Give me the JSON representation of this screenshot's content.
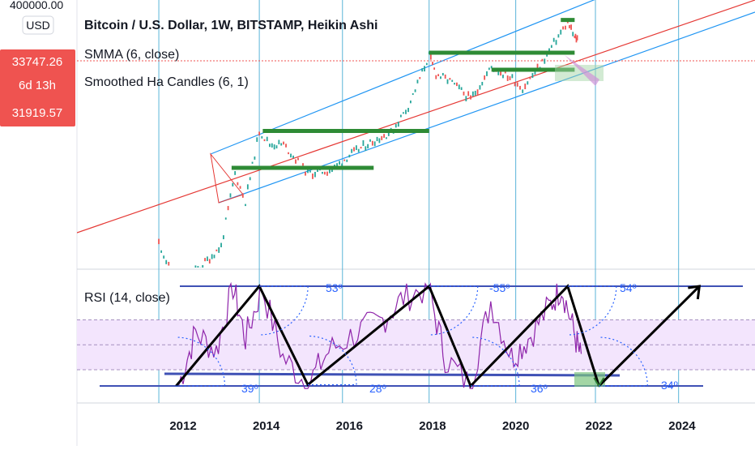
{
  "price_axis": {
    "unit": "USD",
    "top_value": "400000.00",
    "badges": [
      {
        "label": "33747.26",
        "color": "#ef5350"
      },
      {
        "label": "6d 13h",
        "color": "#ef5350"
      },
      {
        "label": "31919.57",
        "color": "#ef5350"
      }
    ]
  },
  "legend": {
    "title": "Bitcoin / U.S. Dollar, 1W, BITSTAMP, Heikin Ashi",
    "indicator1": "SMMA (6, close)",
    "indicator2": "Smoothed Ha Candles (6, 1)"
  },
  "rsi_panel": {
    "title": "RSI (14, close)",
    "angle_labels": [
      "53º",
      "-55º",
      "54º",
      "39º",
      "28º",
      "36º",
      "34º"
    ]
  },
  "time_axis": {
    "labels": [
      "2012",
      "2014",
      "2016",
      "2018",
      "2020",
      "2022",
      "2024"
    ]
  },
  "colors": {
    "bull": "#26a69a",
    "bear": "#ef5350",
    "channel": "#2196f3",
    "midline": "#e53935",
    "level": "#2e8b35",
    "rsi": "#8e24aa",
    "rsi_band": "#f3e5fd",
    "trend": "#000000",
    "cycle_line": "#5ab4d8"
  },
  "chart_data": {
    "type": "line",
    "title": "Bitcoin / U.S. Dollar, 1W, BITSTAMP, Heikin Ashi",
    "x_axis": {
      "type": "time",
      "ticks": [
        "2012",
        "2014",
        "2016",
        "2018",
        "2020",
        "2022",
        "2024"
      ]
    },
    "y_axis": {
      "scale": "log",
      "unit": "USD"
    },
    "series": [
      {
        "name": "SMMA (6, close)",
        "values": []
      },
      {
        "name": "Smoothed Ha Candles (6, 1)",
        "values": []
      }
    ],
    "price_path": [
      [
        "2011-06",
        15
      ],
      [
        "2011-11",
        3
      ],
      [
        "2012-06",
        6
      ],
      [
        "2012-12",
        13
      ],
      [
        "2013-04",
        200
      ],
      [
        "2013-07",
        70
      ],
      [
        "2013-11",
        1000
      ],
      [
        "2014-02",
        600
      ],
      [
        "2014-06",
        600
      ],
      [
        "2015-01",
        200
      ],
      [
        "2015-08",
        230
      ],
      [
        "2016-01",
        400
      ],
      [
        "2016-07",
        650
      ],
      [
        "2017-01",
        950
      ],
      [
        "2017-06",
        2500
      ],
      [
        "2017-12",
        17000
      ],
      [
        "2018-02",
        8500
      ],
      [
        "2018-06",
        6500
      ],
      [
        "2018-12",
        3300
      ],
      [
        "2019-06",
        11000
      ],
      [
        "2019-12",
        7200
      ],
      [
        "2020-03",
        5000
      ],
      [
        "2020-08",
        11500
      ],
      [
        "2020-12",
        27000
      ],
      [
        "2021-04",
        60000
      ],
      [
        "2021-06",
        33000
      ],
      [
        "2021-07",
        32000
      ]
    ],
    "horizontal_levels": [
      {
        "value": 1000,
        "from": "2013-12",
        "to": "2017-12"
      },
      {
        "value": 250,
        "from": "2013-03",
        "to": "2016-08"
      },
      {
        "value": 19000,
        "from": "2017-12",
        "to": "2021-06"
      },
      {
        "value": 10000,
        "from": "2019-06",
        "to": "2021-06"
      },
      {
        "value": 65000,
        "from": "2021-02",
        "to": "2021-06"
      }
    ],
    "rsi": {
      "title": "RSI (14, close)",
      "levels": [
        70,
        50,
        30
      ],
      "trend_points": [
        [
          "2011-11",
          17
        ],
        [
          "2013-11",
          97
        ],
        [
          "2015-01",
          18
        ],
        [
          "2017-12",
          97
        ],
        [
          "2018-12",
          17
        ],
        [
          "2021-04",
          97
        ],
        [
          "2022-01",
          17
        ],
        [
          "2024-06",
          97
        ]
      ],
      "angles": [
        "53º",
        "-55º",
        "54º",
        "39º",
        "28º",
        "36º",
        "34º"
      ]
    },
    "cycle_dates": [
      "2011-06",
      "2013-11",
      "2015-11",
      "2017-12",
      "2020-01",
      "2021-12",
      "2023-12"
    ]
  }
}
